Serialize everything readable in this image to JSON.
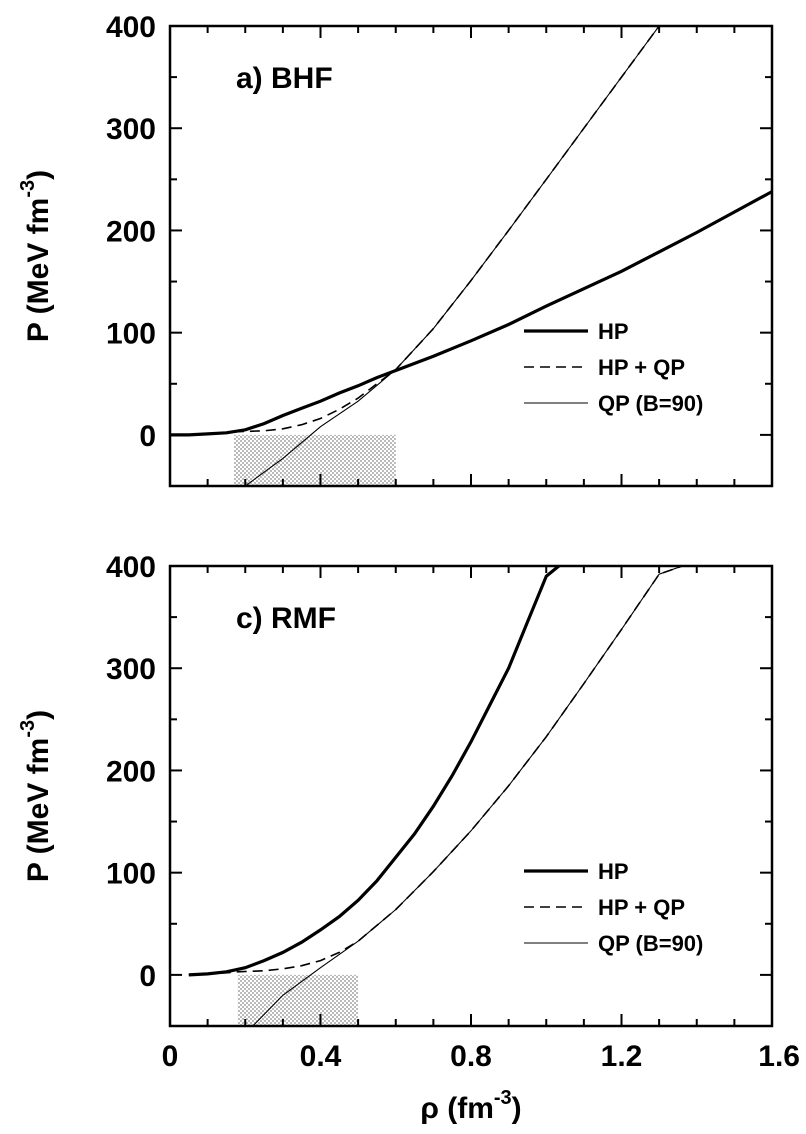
{
  "chart_data": [
    {
      "type": "line",
      "title": "a) BHF",
      "xlabel": "",
      "ylabel": "P (MeV fm^-3)",
      "xlim": [
        0,
        1.6
      ],
      "ylim": [
        -50,
        400
      ],
      "x_ticks": [
        "0",
        "0.4",
        "0.8",
        "1.2",
        "1.6"
      ],
      "x_tick_labels_shown": false,
      "y_ticks": [
        "0",
        "100",
        "200",
        "300",
        "400"
      ],
      "shaded_region": {
        "x": [
          0.17,
          0.6
        ],
        "pattern": "dotted",
        "color": "#9a9a9a"
      },
      "legend_position": "center-right",
      "series": [
        {
          "name": "HP",
          "style": "thick-solid",
          "x": [
            0.0,
            0.05,
            0.1,
            0.15,
            0.2,
            0.25,
            0.3,
            0.35,
            0.4,
            0.45,
            0.5,
            0.55,
            0.6,
            0.7,
            0.8,
            0.9,
            1.0,
            1.1,
            1.2,
            1.3,
            1.4,
            1.5,
            1.6
          ],
          "y": [
            0,
            0,
            1,
            2,
            5,
            11,
            19,
            26,
            33,
            41,
            48,
            56,
            63,
            77,
            92,
            108,
            126,
            143,
            160,
            179,
            198,
            218,
            238
          ]
        },
        {
          "name": "HP + QP",
          "style": "dashed",
          "x": [
            0.0,
            0.05,
            0.1,
            0.15,
            0.17,
            0.25,
            0.3,
            0.35,
            0.4,
            0.45,
            0.5,
            0.55,
            0.6,
            0.7,
            0.8,
            0.9,
            1.0,
            1.1,
            1.2,
            1.3,
            1.4
          ],
          "y": [
            0,
            0,
            1,
            2,
            3,
            4,
            6,
            10,
            16,
            25,
            36,
            50,
            64,
            104,
            151,
            200,
            250,
            300,
            350,
            400,
            455
          ]
        },
        {
          "name": "QP (B=90)",
          "style": "thin-solid",
          "x": [
            0.2,
            0.3,
            0.4,
            0.5,
            0.6,
            0.7,
            0.8,
            0.9,
            1.0,
            1.1,
            1.2,
            1.3,
            1.4
          ],
          "y": [
            -50,
            -23,
            8,
            33,
            64,
            104,
            151,
            200,
            250,
            300,
            350,
            400,
            455
          ]
        }
      ]
    },
    {
      "type": "line",
      "title": "c) RMF",
      "xlabel": "ρ (fm^-3)",
      "ylabel": "P (MeV fm^-3)",
      "xlim": [
        0,
        1.6
      ],
      "ylim": [
        -50,
        400
      ],
      "x_ticks": [
        "0",
        "0.4",
        "0.8",
        "1.2",
        "1.6"
      ],
      "y_ticks": [
        "0",
        "100",
        "200",
        "300",
        "400"
      ],
      "shaded_region": {
        "x": [
          0.18,
          0.5
        ],
        "pattern": "dotted",
        "color": "#9a9a9a"
      },
      "legend_position": "center-right",
      "series": [
        {
          "name": "HP",
          "style": "thick-solid",
          "x": [
            0.05,
            0.1,
            0.15,
            0.2,
            0.25,
            0.3,
            0.35,
            0.4,
            0.45,
            0.5,
            0.55,
            0.6,
            0.65,
            0.7,
            0.75,
            0.8,
            0.85,
            0.9,
            0.95,
            1.0,
            1.05
          ],
          "y": [
            0,
            1,
            3,
            7,
            14,
            22,
            32,
            44,
            57,
            73,
            92,
            115,
            138,
            165,
            195,
            228,
            264,
            300,
            345,
            390,
            405
          ]
        },
        {
          "name": "HP + QP",
          "style": "dashed",
          "x": [
            0.05,
            0.1,
            0.15,
            0.18,
            0.25,
            0.3,
            0.35,
            0.4,
            0.45,
            0.5,
            0.6,
            0.7,
            0.8,
            0.9,
            1.0,
            1.1,
            1.2,
            1.3,
            1.4
          ],
          "y": [
            0,
            1,
            2,
            3,
            4,
            6,
            9,
            14,
            22,
            33,
            64,
            101,
            141,
            185,
            233,
            285,
            338,
            392,
            405
          ]
        },
        {
          "name": "QP (B=90)",
          "style": "thin-solid",
          "x": [
            0.22,
            0.3,
            0.4,
            0.5,
            0.6,
            0.7,
            0.8,
            0.9,
            1.0,
            1.1,
            1.2,
            1.3,
            1.4
          ],
          "y": [
            -50,
            -20,
            7,
            33,
            64,
            101,
            141,
            185,
            233,
            285,
            338,
            392,
            405
          ]
        }
      ]
    }
  ]
}
